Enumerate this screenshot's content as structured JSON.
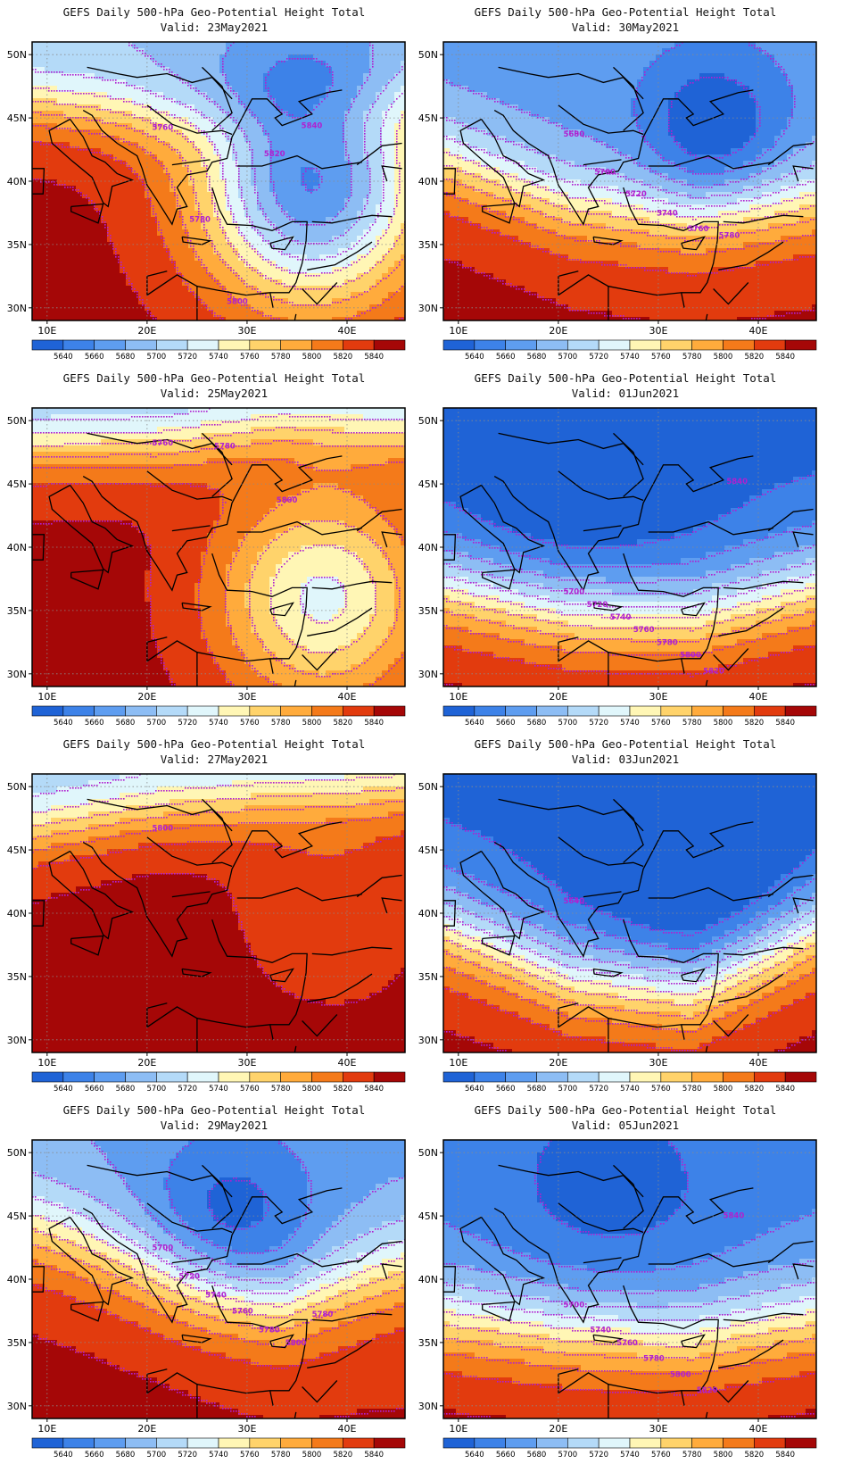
{
  "color_scale": {
    "label_values": [
      "5640",
      "5660",
      "5680",
      "5700",
      "5720",
      "5740",
      "5760",
      "5780",
      "5800",
      "5820",
      "5840"
    ],
    "colors": [
      "#1f63d6",
      "#3d82e8",
      "#5e9df0",
      "#8dbdf4",
      "#b4daf8",
      "#e0f6fb",
      "#fff6b5",
      "#ffd36b",
      "#ffab3c",
      "#f47a1a",
      "#e23b0e",
      "#a50707"
    ]
  },
  "axes": {
    "lat_labels": [
      "50N",
      "45N",
      "40N",
      "35N",
      "30N"
    ],
    "lon_labels": [
      "10E",
      "20E",
      "30E",
      "40E"
    ],
    "lat_values": [
      50,
      45,
      40,
      35,
      30
    ],
    "lon_values": [
      10,
      20,
      30,
      40
    ],
    "lat_range": [
      29.0,
      51.0
    ],
    "lon_range": [
      8.5,
      45.8
    ]
  },
  "contour_color": "#b020d0",
  "panels": [
    {
      "title": "GEFS Daily 500-hPa Geo-Potential Height Total",
      "valid_label": "Valid: 23May2021",
      "field": {
        "type": "low",
        "base": [
          5846,
          5848,
          5848,
          5850
        ],
        "jet": {
          "lat": [
            46,
            45,
            45.5,
            47
          ],
          "strength": 150,
          "width": 3.5
        },
        "lows": [
          {
            "lon": 36.5,
            "lat": 39.5,
            "depth": 185,
            "radius": 6.5
          }
        ]
      },
      "contour_labels": [
        "5760",
        "5780",
        "5800",
        "5820",
        "5840"
      ]
    },
    {
      "title": "GEFS Daily 500-hPa Geo-Potential Height Total",
      "valid_label": "Valid: 30May2021",
      "field": {
        "type": "trough",
        "base": [
          5846,
          5845,
          5844,
          5844
        ],
        "jet": {
          "lat": [
            41.5,
            38,
            37,
            38.5
          ],
          "strength": 175,
          "width": 4.5
        },
        "lows": [
          {
            "lon": 35.5,
            "lat": 44,
            "depth": 55,
            "radius": 4
          }
        ]
      },
      "contour_labels": [
        "5680",
        "5700",
        "5720",
        "5740",
        "5760",
        "5780"
      ]
    },
    {
      "title": "GEFS Daily 500-hPa Geo-Potential Height Total",
      "valid_label": "Valid: 25May2021",
      "field": {
        "type": "low",
        "base": [
          5845,
          5848,
          5850,
          5850
        ],
        "jet": {
          "lat": [
            48,
            48,
            49.5,
            49
          ],
          "strength": 160,
          "width": 3.5
        },
        "lows": [
          {
            "lon": 37.5,
            "lat": 36,
            "depth": 115,
            "radius": 6
          }
        ]
      },
      "contour_labels": [
        "5760",
        "5780",
        "5800"
      ]
    },
    {
      "title": "GEFS Daily 500-hPa Geo-Potential Height Total",
      "valid_label": "Valid: 01Jun2021",
      "field": {
        "type": "trough",
        "base": [
          5850,
          5852,
          5852,
          5850
        ],
        "jet": {
          "lat": [
            37,
            35,
            34.5,
            37
          ],
          "strength": 215,
          "width": 5
        },
        "lows": [
          {
            "lon": 22,
            "lat": 46,
            "depth": 30,
            "radius": 7
          }
        ]
      },
      "contour_labels": [
        "5700",
        "5720",
        "5740",
        "5760",
        "5780",
        "5800",
        "5820",
        "5840"
      ]
    },
    {
      "title": "GEFS Daily 500-hPa Geo-Potential Height Total",
      "valid_label": "Valid: 27May2021",
      "field": {
        "type": "zonal",
        "base": [
          5846,
          5850,
          5848,
          5848
        ],
        "jet": {
          "lat": [
            46.5,
            48,
            49,
            49.5
          ],
          "strength": 150,
          "width": 3.5
        },
        "lows": [
          {
            "lon": 38.5,
            "lat": 40.5,
            "depth": 25,
            "radius": 5
          }
        ]
      },
      "contour_labels": [
        "5800"
      ]
    },
    {
      "title": "GEFS Daily 500-hPa Geo-Potential Height Total",
      "valid_label": "Valid: 03Jun2021",
      "field": {
        "type": "trough",
        "base": [
          5848,
          5850,
          5850,
          5848
        ],
        "jet": {
          "lat": [
            39,
            35,
            34,
            39
          ],
          "strength": 215,
          "width": 5
        },
        "lows": [
          {
            "lon": 33,
            "lat": 44,
            "depth": 40,
            "radius": 6
          }
        ]
      },
      "contour_labels": [
        "5640"
      ]
    },
    {
      "title": "GEFS Daily 500-hPa Geo-Potential Height Total",
      "valid_label": "Valid: 29May2021",
      "field": {
        "type": "trough",
        "base": [
          5846,
          5846,
          5844,
          5842
        ],
        "jet": {
          "lat": [
            44,
            41,
            38,
            41
          ],
          "strength": 170,
          "width": 5
        },
        "lows": [
          {
            "lon": 28,
            "lat": 44,
            "depth": 55,
            "radius": 5
          }
        ]
      },
      "contour_labels": [
        "5700",
        "5720",
        "5740",
        "5760",
        "5780",
        "5800",
        "5780"
      ]
    },
    {
      "title": "GEFS Daily 500-hPa Geo-Potential Height Total",
      "valid_label": "Valid: 05Jun2021",
      "field": {
        "type": "trough",
        "base": [
          5850,
          5850,
          5850,
          5850
        ],
        "jet": {
          "lat": [
            37,
            36,
            35.5,
            37
          ],
          "strength": 195,
          "width": 5
        },
        "lows": [
          {
            "lon": 25,
            "lat": 46,
            "depth": 25,
            "radius": 7
          }
        ]
      },
      "contour_labels": [
        "5700",
        "5740",
        "5760",
        "5780",
        "5800",
        "5820",
        "5840"
      ]
    }
  ]
}
